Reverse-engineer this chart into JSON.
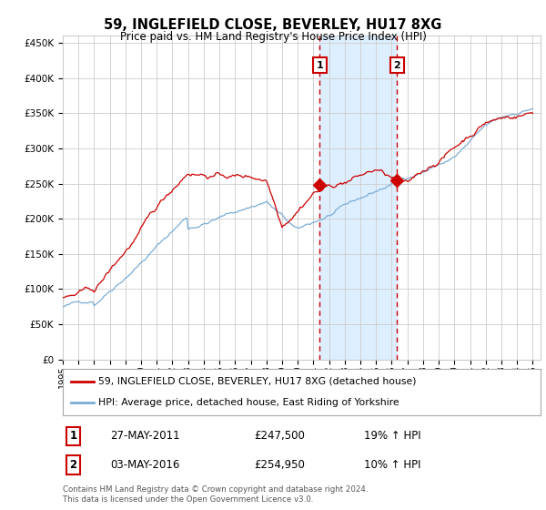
{
  "title": "59, INGLEFIELD CLOSE, BEVERLEY, HU17 8XG",
  "subtitle": "Price paid vs. HM Land Registry's House Price Index (HPI)",
  "red_label": "59, INGLEFIELD CLOSE, BEVERLEY, HU17 8XG (detached house)",
  "blue_label": "HPI: Average price, detached house, East Riding of Yorkshire",
  "annotation1": {
    "label": "1",
    "date_x": 2011.4,
    "y": 247500,
    "date_str": "27-MAY-2011",
    "price": "£247,500",
    "pct": "19% ↑ HPI"
  },
  "annotation2": {
    "label": "2",
    "date_x": 2016.34,
    "y": 254950,
    "date_str": "03-MAY-2016",
    "price": "£254,950",
    "pct": "10% ↑ HPI"
  },
  "xlim": [
    1995.0,
    2025.5
  ],
  "ylim": [
    0,
    460000
  ],
  "yticks": [
    0,
    50000,
    100000,
    150000,
    200000,
    250000,
    300000,
    350000,
    400000,
    450000
  ],
  "xticks": [
    1995,
    1996,
    1997,
    1998,
    1999,
    2000,
    2001,
    2002,
    2003,
    2004,
    2005,
    2006,
    2007,
    2008,
    2009,
    2010,
    2011,
    2012,
    2013,
    2014,
    2015,
    2016,
    2017,
    2018,
    2019,
    2020,
    2021,
    2022,
    2023,
    2024,
    2025
  ],
  "red_color": "#cc0000",
  "blue_color": "#7aadd4",
  "shade_color": "#ddeeff",
  "vline_color": "#cc0000",
  "grid_color": "#cccccc",
  "bg_color": "#ffffff",
  "plot_bg_color": "#ffffff",
  "footer": "Contains HM Land Registry data © Crown copyright and database right 2024.\nThis data is licensed under the Open Government Licence v3.0."
}
